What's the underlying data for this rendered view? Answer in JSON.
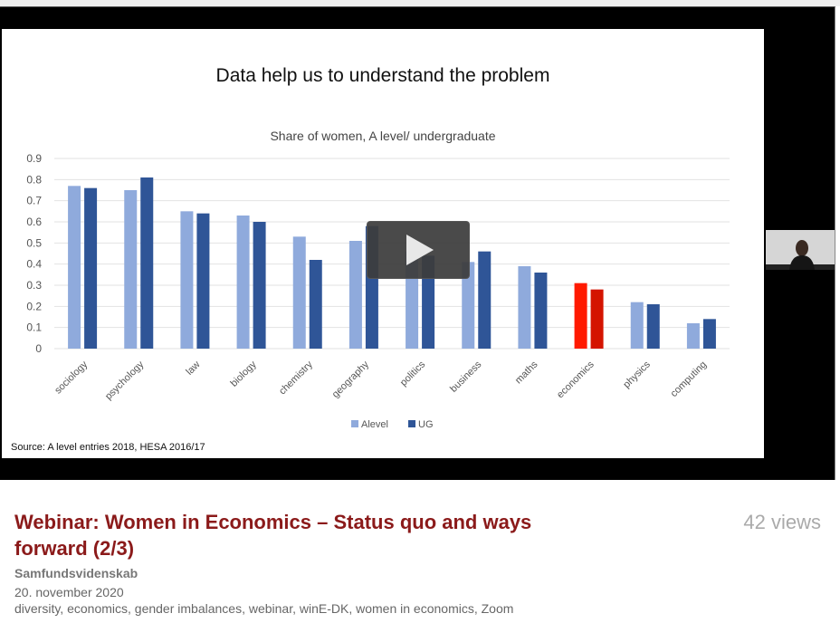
{
  "video": {
    "slide_title": "Data help us to understand the problem",
    "source": "Source: A level entries 2018, HESA 2016/17",
    "play_icon": "play-icon"
  },
  "chart_data": {
    "type": "bar",
    "title": "Share of women, A level/ undergraduate",
    "categories": [
      "sociology",
      "psychology",
      "law",
      "biology",
      "chemistry",
      "geography",
      "politics",
      "business",
      "maths",
      "economics",
      "physics",
      "computing"
    ],
    "series": [
      {
        "name": "Alevel",
        "color": "#8faadc",
        "values": [
          0.77,
          0.75,
          0.65,
          0.63,
          0.53,
          0.51,
          0.46,
          0.41,
          0.39,
          0.31,
          0.22,
          0.12
        ]
      },
      {
        "name": "UG",
        "color": "#2f5597",
        "values": [
          0.76,
          0.81,
          0.64,
          0.6,
          0.42,
          0.58,
          0.44,
          0.46,
          0.36,
          0.28,
          0.21,
          0.14
        ]
      }
    ],
    "highlight": {
      "category": "economics",
      "colors": [
        "#ff1a00",
        "#d41400"
      ]
    },
    "ylim": [
      0,
      0.9
    ],
    "yticks": [
      "0",
      "0.1",
      "0.2",
      "0.3",
      "0.4",
      "0.5",
      "0.6",
      "0.7",
      "0.8",
      "0.9"
    ],
    "grid": true,
    "legend": "bottom"
  },
  "info": {
    "title": "Webinar: Women in Economics – Status quo and ways forward (2/3)",
    "views": "42 views",
    "organization": "Samfundsvidenskab",
    "date": "20. november 2020",
    "tags": "diversity, economics, gender imbalances, webinar, winE-DK, women in economics, Zoom"
  }
}
